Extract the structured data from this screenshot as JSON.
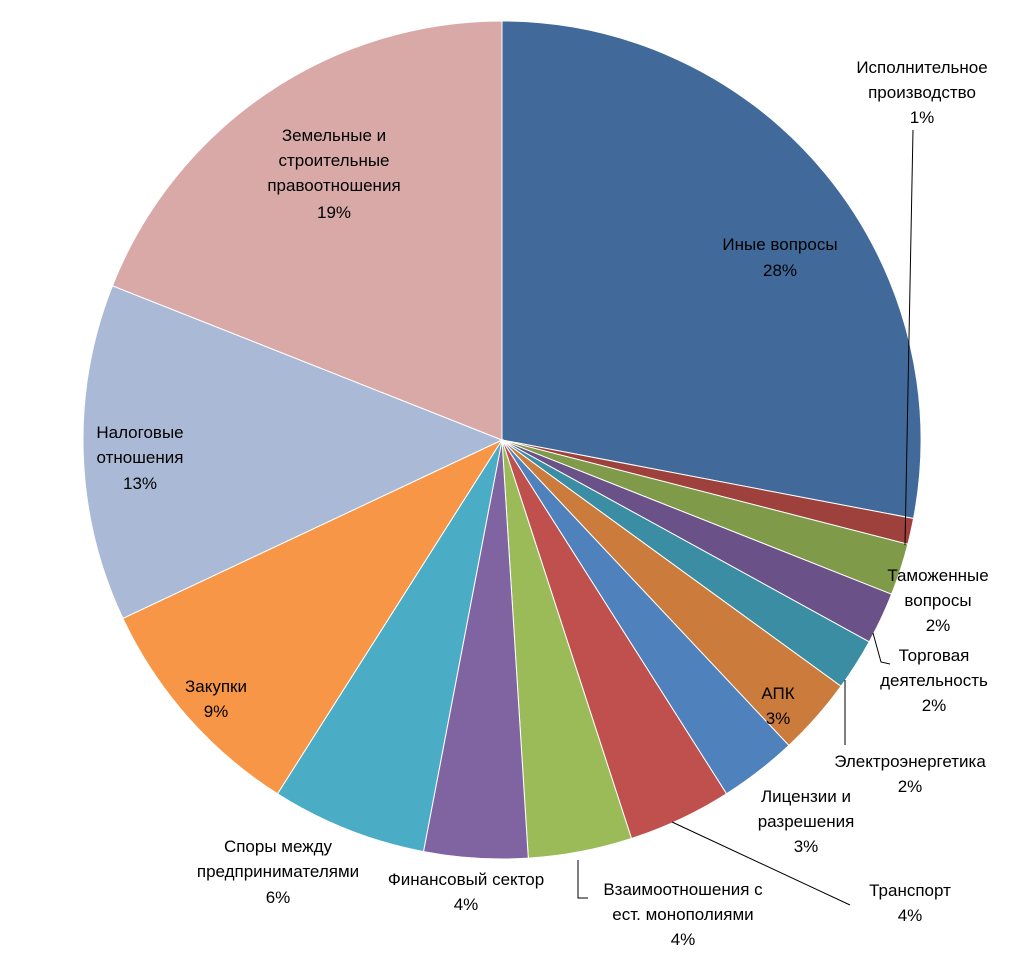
{
  "chart_data": {
    "type": "pie",
    "title": "",
    "slices": [
      {
        "label": "Иные вопросы",
        "value": 28,
        "pct_label": "28%",
        "color": "#416A9A"
      },
      {
        "label": "Исполнительное производство",
        "value": 1,
        "pct_label": "1%",
        "color": "#9E413D"
      },
      {
        "label": "Таможенные вопросы",
        "value": 2,
        "pct_label": "2%",
        "color": "#7F9A48"
      },
      {
        "label": "Торговая деятельность",
        "value": 2,
        "pct_label": "2%",
        "color": "#6A5187"
      },
      {
        "label": "Электроэнергетика",
        "value": 2,
        "pct_label": "2%",
        "color": "#3A8DA2"
      },
      {
        "label": "АПК",
        "value": 3,
        "pct_label": "3%",
        "color": "#CB7C3D"
      },
      {
        "label": "Лицензии и разрешения",
        "value": 3,
        "pct_label": "3%",
        "color": "#4F81BD"
      },
      {
        "label": "Транспорт",
        "value": 4,
        "pct_label": "4%",
        "color": "#C0504D"
      },
      {
        "label": "Взаимоотношения с ест. монополиями",
        "value": 4,
        "pct_label": "4%",
        "color": "#9BBB59"
      },
      {
        "label": "Финансовый сектор",
        "value": 4,
        "pct_label": "4%",
        "color": "#8064A2"
      },
      {
        "label": "Споры между предпринимателями",
        "value": 6,
        "pct_label": "6%",
        "color": "#4BACC6"
      },
      {
        "label": "Закупки",
        "value": 9,
        "pct_label": "9%",
        "color": "#F79646"
      },
      {
        "label": "Налоговые отношения",
        "value": 13,
        "pct_label": "13%",
        "color": "#AAB9D6"
      },
      {
        "label": "Земельные и строительные правоотношения",
        "value": 19,
        "pct_label": "19%",
        "color": "#D9A9A8"
      }
    ]
  }
}
